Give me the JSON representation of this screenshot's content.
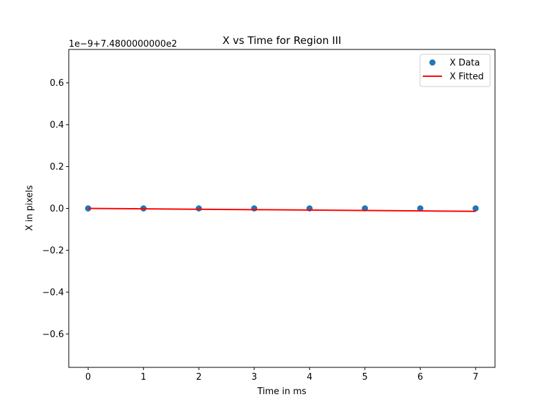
{
  "chart_data": {
    "type": "scatter",
    "title": "X vs Time for Region III",
    "xlabel": "Time in ms",
    "ylabel": "X in pixels",
    "offset_text": "1e−9+7.4800000000e2",
    "xlim": [
      -0.35,
      7.35
    ],
    "ylim": [
      -0.76,
      0.76
    ],
    "x_ticks": [
      0,
      1,
      2,
      3,
      4,
      5,
      6,
      7
    ],
    "x_tick_labels": [
      "0",
      "1",
      "2",
      "3",
      "4",
      "5",
      "6",
      "7"
    ],
    "y_ticks": [
      -0.6,
      -0.4,
      -0.2,
      0.0,
      0.2,
      0.4,
      0.6
    ],
    "y_tick_labels": [
      "−0.6",
      "−0.4",
      "−0.2",
      "0.0",
      "0.2",
      "0.4",
      "0.6"
    ],
    "grid": false,
    "legend_position": "top-right",
    "series": [
      {
        "name": "X Data",
        "kind": "scatter",
        "color": "#1f77b4",
        "x": [
          0,
          1,
          2,
          3,
          4,
          5,
          6,
          7
        ],
        "y": [
          0.0,
          0.0,
          0.0,
          0.0,
          0.0,
          0.0,
          0.0,
          0.0
        ]
      },
      {
        "name": "X Fitted",
        "kind": "line",
        "color": "#ff0000",
        "x": [
          0,
          1,
          2,
          3,
          4,
          5,
          6,
          7
        ],
        "y": [
          0.0,
          -0.002,
          -0.004,
          -0.006,
          -0.008,
          -0.01,
          -0.012,
          -0.014
        ]
      }
    ]
  }
}
